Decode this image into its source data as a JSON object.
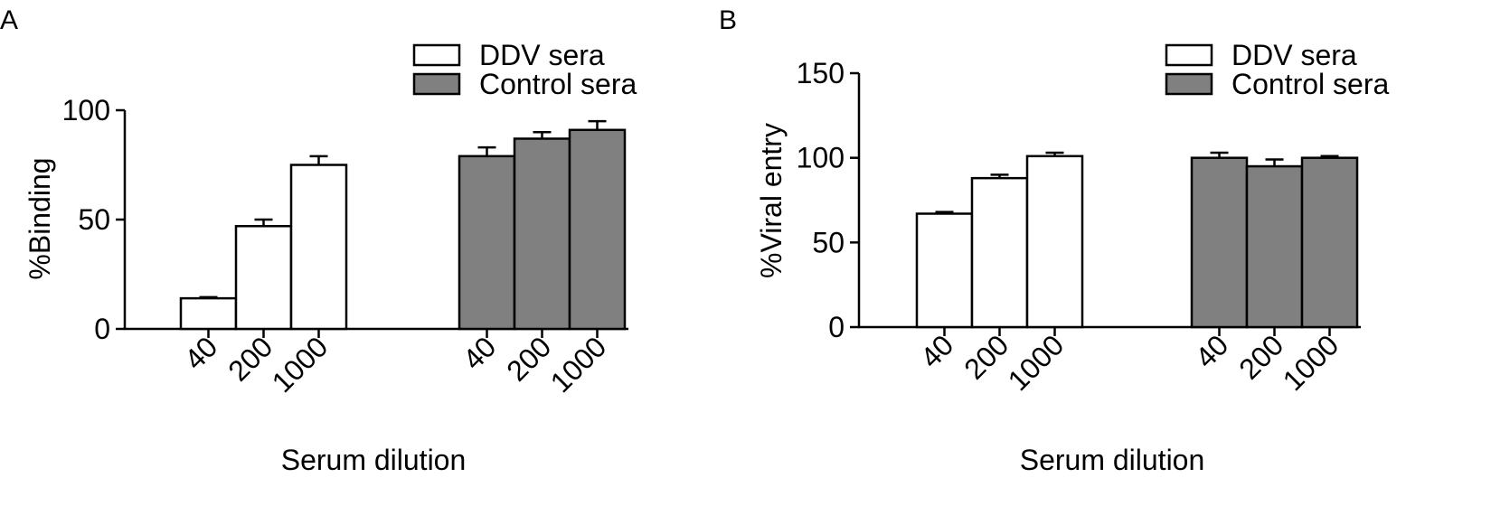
{
  "chart_data": [
    {
      "type": "bar",
      "panel": "A",
      "title": "",
      "xlabel": "Serum dilution",
      "ylabel": "%Binding",
      "ylim": [
        0,
        100
      ],
      "yticks": [
        "0",
        "50",
        "100"
      ],
      "groups": [
        "DDV sera",
        "Control sera"
      ],
      "categories": [
        "40",
        "200",
        "1000"
      ],
      "series": [
        {
          "name": "DDV sera",
          "values": [
            14,
            47,
            75
          ],
          "errors": [
            0.5,
            3,
            4
          ],
          "color": "#ffffff"
        },
        {
          "name": "Control sera",
          "values": [
            79,
            87,
            91
          ],
          "errors": [
            4,
            3,
            4
          ],
          "color": "#808080"
        }
      ],
      "legend": [
        "DDV sera",
        "Control sera"
      ],
      "legend_position": "top-right",
      "grid": false
    },
    {
      "type": "bar",
      "panel": "B",
      "title": "",
      "xlabel": "Serum dilution",
      "ylabel": "%Viral entry",
      "ylim": [
        0,
        150
      ],
      "yticks": [
        "0",
        "50",
        "100",
        "150"
      ],
      "groups": [
        "DDV sera",
        "Control sera"
      ],
      "categories": [
        "40",
        "200",
        "1000"
      ],
      "series": [
        {
          "name": "DDV sera",
          "values": [
            67,
            88,
            101
          ],
          "errors": [
            1,
            2,
            2
          ],
          "color": "#ffffff"
        },
        {
          "name": "Control sera",
          "values": [
            100,
            95,
            100
          ],
          "errors": [
            3,
            4,
            1
          ],
          "color": "#808080"
        }
      ],
      "legend": [
        "DDV sera",
        "Control sera"
      ],
      "legend_position": "top-right",
      "grid": false
    }
  ]
}
